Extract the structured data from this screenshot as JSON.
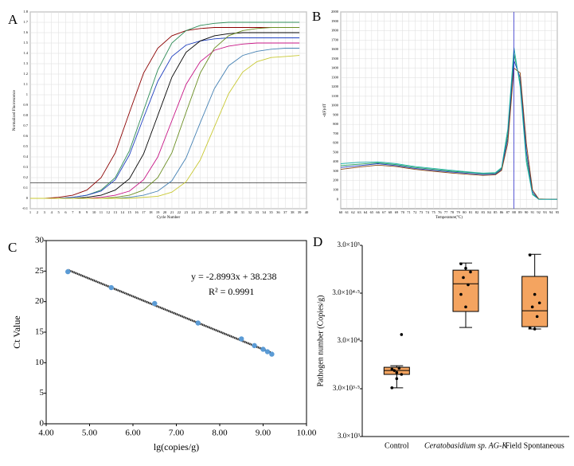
{
  "chart_data": [
    {
      "type": "line",
      "label": "A",
      "x_label": "Cycle Number",
      "y_label": "Normalized Fluorescence",
      "grid": true,
      "x": [
        1,
        3,
        5,
        7,
        9,
        11,
        13,
        15,
        17,
        19,
        21,
        23,
        25,
        27,
        29,
        31,
        33,
        35,
        37,
        39
      ],
      "xlim": [
        1,
        40
      ],
      "xticks": [
        1,
        2,
        3,
        4,
        5,
        6,
        7,
        8,
        9,
        10,
        11,
        12,
        13,
        14,
        15,
        16,
        17,
        18,
        19,
        20,
        21,
        22,
        23,
        24,
        25,
        26,
        27,
        28,
        29,
        30,
        31,
        32,
        33,
        34,
        35,
        36,
        37,
        38,
        39,
        40
      ],
      "ylim": [
        -0.1,
        1.8
      ],
      "yticks": [
        -0.1,
        0,
        0.1,
        0.2,
        0.3,
        0.4,
        0.5,
        0.6,
        0.7,
        0.8,
        0.9,
        1,
        1.1,
        1.2,
        1.3,
        1.4,
        1.5,
        1.6,
        1.7,
        1.8
      ],
      "threshold": 0.15,
      "series": [
        {
          "color": "#8b0000",
          "values": [
            0,
            0,
            0.01,
            0.03,
            0.08,
            0.2,
            0.44,
            0.83,
            1.21,
            1.45,
            1.57,
            1.62,
            1.64,
            1.65,
            1.65,
            1.65,
            1.65,
            1.65,
            1.65,
            1.65
          ]
        },
        {
          "color": "#2e8b57",
          "values": [
            0,
            0,
            0,
            0.01,
            0.03,
            0.08,
            0.2,
            0.46,
            0.85,
            1.24,
            1.5,
            1.62,
            1.67,
            1.69,
            1.7,
            1.7,
            1.7,
            1.7,
            1.7,
            1.7
          ]
        },
        {
          "color": "#1f3fbf",
          "values": [
            0,
            0,
            0,
            0.01,
            0.03,
            0.07,
            0.18,
            0.42,
            0.78,
            1.13,
            1.37,
            1.48,
            1.52,
            1.54,
            1.55,
            1.55,
            1.55,
            1.55,
            1.55,
            1.55
          ]
        },
        {
          "color": "#000000",
          "values": [
            0,
            0,
            0,
            0,
            0.01,
            0.03,
            0.08,
            0.19,
            0.43,
            0.8,
            1.17,
            1.41,
            1.52,
            1.57,
            1.59,
            1.6,
            1.6,
            1.6,
            1.6,
            1.6
          ]
        },
        {
          "color": "#c71585",
          "values": [
            0,
            0,
            0,
            0,
            0,
            0.01,
            0.03,
            0.07,
            0.18,
            0.4,
            0.75,
            1.1,
            1.32,
            1.43,
            1.47,
            1.49,
            1.5,
            1.5,
            1.5,
            1.5
          ]
        },
        {
          "color": "#6b8e23",
          "values": [
            0,
            0,
            0,
            0,
            0,
            0,
            0.01,
            0.03,
            0.08,
            0.2,
            0.44,
            0.83,
            1.21,
            1.45,
            1.57,
            1.62,
            1.64,
            1.65,
            1.65,
            1.65
          ]
        },
        {
          "color": "#4682b4",
          "values": [
            0,
            0,
            0,
            0,
            0,
            0,
            0,
            0.01,
            0.03,
            0.07,
            0.17,
            0.39,
            0.73,
            1.06,
            1.28,
            1.38,
            1.42,
            1.44,
            1.45,
            1.45
          ]
        },
        {
          "color": "#c8c832",
          "values": [
            0,
            0,
            0,
            0,
            0,
            0,
            0,
            0,
            0.01,
            0.02,
            0.06,
            0.16,
            0.37,
            0.69,
            1.01,
            1.22,
            1.32,
            1.36,
            1.37,
            1.38
          ]
        }
      ]
    },
    {
      "type": "line",
      "label": "B",
      "x_label": "Temperature(°C)",
      "y_label": "-d(F)/dT",
      "grid": true,
      "x": [
        60,
        63,
        66,
        69,
        72,
        75,
        78,
        81,
        83,
        85,
        86,
        87,
        88,
        89,
        90,
        91,
        92,
        94,
        95
      ],
      "xlim": [
        60,
        95
      ],
      "xticks": [
        60,
        61,
        62,
        63,
        64,
        65,
        66,
        67,
        68,
        69,
        70,
        71,
        72,
        73,
        74,
        75,
        76,
        77,
        78,
        79,
        80,
        81,
        82,
        83,
        84,
        85,
        86,
        87,
        88,
        89,
        90,
        91,
        92,
        93,
        94,
        95
      ],
      "ylim": [
        -100,
        2000
      ],
      "yticks": [
        0,
        100,
        200,
        300,
        400,
        500,
        600,
        700,
        800,
        900,
        1000,
        1100,
        1200,
        1300,
        1400,
        1500,
        1600,
        1700,
        1800,
        1900,
        2000
      ],
      "vline": 88,
      "series": [
        {
          "color": "#1f9d55",
          "values": [
            360,
            375,
            390,
            370,
            340,
            320,
            300,
            285,
            275,
            280,
            330,
            700,
            1550,
            1250,
            450,
            60,
            0,
            0,
            0
          ]
        },
        {
          "color": "#1f3fbf",
          "values": [
            340,
            360,
            380,
            360,
            330,
            310,
            290,
            275,
            265,
            270,
            320,
            650,
            1480,
            1300,
            520,
            80,
            0,
            0,
            0
          ]
        },
        {
          "color": "#8b4513",
          "values": [
            320,
            345,
            365,
            350,
            320,
            300,
            280,
            265,
            255,
            262,
            310,
            600,
            1400,
            1350,
            600,
            100,
            5,
            0,
            0
          ]
        },
        {
          "color": "#20b2aa",
          "values": [
            380,
            395,
            400,
            380,
            350,
            330,
            310,
            290,
            280,
            285,
            340,
            750,
            1620,
            1200,
            400,
            50,
            0,
            0,
            0
          ]
        }
      ]
    },
    {
      "type": "scatter",
      "label": "C",
      "x_label": "lg(copies/g)",
      "y_label": "Ct Value",
      "equation": "y = -2.8993x + 38.238",
      "r2": "R² = 0.9991",
      "color": "#5b9bd5",
      "x": [
        4.5,
        5.5,
        6.5,
        7.5,
        8.5,
        8.8,
        9.0,
        9.1,
        9.2
      ],
      "y": [
        24.9,
        22.3,
        19.7,
        16.5,
        13.9,
        12.8,
        12.2,
        11.8,
        11.4
      ],
      "trendline": {
        "x": [
          4.5,
          9.2
        ],
        "y": [
          25.2,
          11.6
        ]
      },
      "xlim": [
        4,
        10
      ],
      "xticks": [
        {
          "value": 4,
          "label": "4.00"
        },
        {
          "value": 5,
          "label": "5.00"
        },
        {
          "value": 6,
          "label": "6.00"
        },
        {
          "value": 7,
          "label": "7.00"
        },
        {
          "value": 8,
          "label": "8.00"
        },
        {
          "value": 9,
          "label": "9.00"
        },
        {
          "value": 10,
          "label": "10.00"
        }
      ],
      "ylim": [
        0,
        30
      ],
      "yticks": [
        0,
        5,
        10,
        15,
        20,
        25,
        30
      ]
    },
    {
      "type": "box",
      "label": "D",
      "y_label": "Pathogen number (Copies/g)",
      "log_scale": true,
      "color": "#f4a460",
      "categories": [
        "Control",
        "Ceratobasidium sp. AG-K",
        "Field Spontaneous"
      ],
      "ylim": [
        3000,
        300000
      ],
      "yticks": [
        {
          "value": 3000,
          "label": "3.0×10³"
        },
        {
          "value": 9486.83,
          "label": "3.0×10³·⁵"
        },
        {
          "value": 30000,
          "label": "3.0×10⁴"
        },
        {
          "value": 94868.33,
          "label": "3.0×10⁴·⁵"
        },
        {
          "value": 300000,
          "label": "3.0×10⁵"
        }
      ],
      "boxes": [
        {
          "whisker_low": 9700,
          "q1": 13400,
          "median": 14700,
          "q3": 15900,
          "whisker_high": 16500,
          "points": [
            9700,
            12100,
            13400,
            14700,
            15600,
            15200,
            14000,
            35000
          ]
        },
        {
          "whisker_low": 41500,
          "q1": 61000,
          "median": 119000,
          "q3": 165000,
          "whisker_high": 196000,
          "points": [
            192000,
            173000,
            158000,
            138000,
            116000,
            92000,
            68000
          ]
        },
        {
          "whisker_low": 40000,
          "q1": 42300,
          "median": 62100,
          "q3": 142000,
          "whisker_high": 242000,
          "points": [
            238000,
            92000,
            75000,
            68000,
            54000,
            41000,
            40000
          ]
        }
      ]
    }
  ]
}
